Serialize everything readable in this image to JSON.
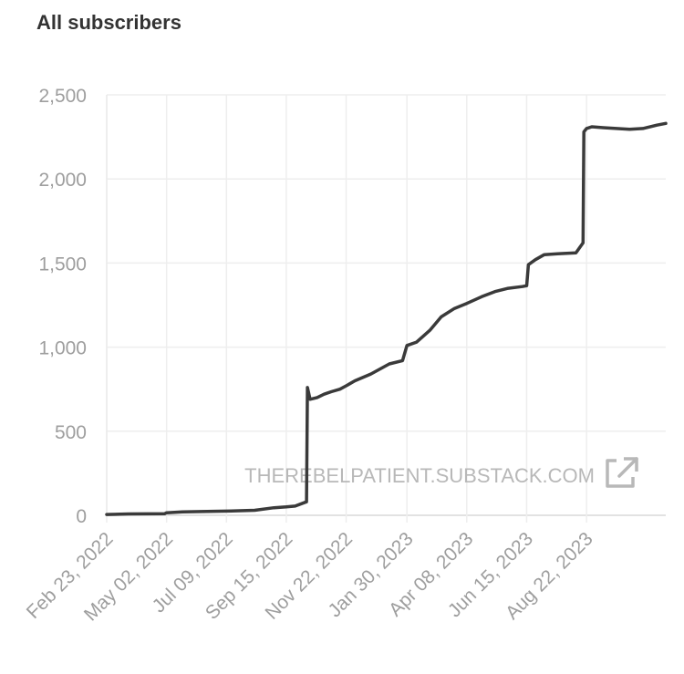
{
  "header": {
    "title": "All subscribers"
  },
  "watermark": {
    "text": "THEREBELPATIENT.SUBSTACK.COM",
    "icon": "external-link-icon"
  },
  "colors": {
    "line": "#3a3a3a",
    "grid": "#eeeeee",
    "axis": "#d9d9d9",
    "text": "#9e9e9e"
  },
  "chart_data": {
    "type": "line",
    "title": "All subscribers",
    "xlabel": "",
    "ylabel": "",
    "ylim": [
      0,
      2500
    ],
    "xlim": [
      "2022-02-23",
      "2023-11-20"
    ],
    "grid": true,
    "y_ticks": [
      0,
      500,
      1000,
      1500,
      2000,
      2500
    ],
    "y_tick_labels": [
      "0",
      "500",
      "1,000",
      "1,500",
      "2,000",
      "2,500"
    ],
    "x_ticks": [
      "2022-02-23",
      "2022-05-02",
      "2022-07-09",
      "2022-09-15",
      "2022-11-22",
      "2023-01-30",
      "2023-04-08",
      "2023-06-15",
      "2023-08-22"
    ],
    "x_tick_labels": [
      "Feb 23, 2022",
      "May 02, 2022",
      "Jul 09, 2022",
      "Sep 15, 2022",
      "Nov 22, 2022",
      "Jan 30, 2023",
      "Apr 08, 2023",
      "Jun 15, 2023",
      "Aug 22, 2023"
    ],
    "series": [
      {
        "x": [
          "2022-02-23",
          "2022-03-20",
          "2022-04-30",
          "2022-05-02",
          "2022-05-20",
          "2022-06-10",
          "2022-07-09",
          "2022-08-10",
          "2022-09-01",
          "2022-09-15",
          "2022-09-25",
          "2022-10-08",
          "2022-10-09",
          "2022-10-12",
          "2022-10-20",
          "2022-10-28",
          "2022-11-05",
          "2022-11-15",
          "2022-11-22",
          "2022-12-02",
          "2022-12-20",
          "2023-01-10",
          "2023-01-25",
          "2023-01-30",
          "2023-02-10",
          "2023-02-25",
          "2023-03-10",
          "2023-03-25",
          "2023-04-08",
          "2023-04-25",
          "2023-05-10",
          "2023-05-25",
          "2023-06-10",
          "2023-06-15",
          "2023-06-17",
          "2023-06-25",
          "2023-07-05",
          "2023-07-20",
          "2023-08-10",
          "2023-08-18",
          "2023-08-19",
          "2023-08-22",
          "2023-08-28",
          "2023-09-10",
          "2023-09-25",
          "2023-10-10",
          "2023-10-25",
          "2023-11-10",
          "2023-11-20"
        ],
        "values": [
          5,
          8,
          10,
          15,
          20,
          22,
          25,
          30,
          45,
          50,
          55,
          80,
          760,
          690,
          700,
          720,
          735,
          750,
          770,
          800,
          840,
          900,
          920,
          1010,
          1030,
          1100,
          1180,
          1230,
          1260,
          1300,
          1330,
          1350,
          1360,
          1365,
          1490,
          1520,
          1550,
          1555,
          1560,
          1620,
          2280,
          2300,
          2310,
          2305,
          2300,
          2295,
          2300,
          2320,
          2330
        ]
      }
    ]
  }
}
